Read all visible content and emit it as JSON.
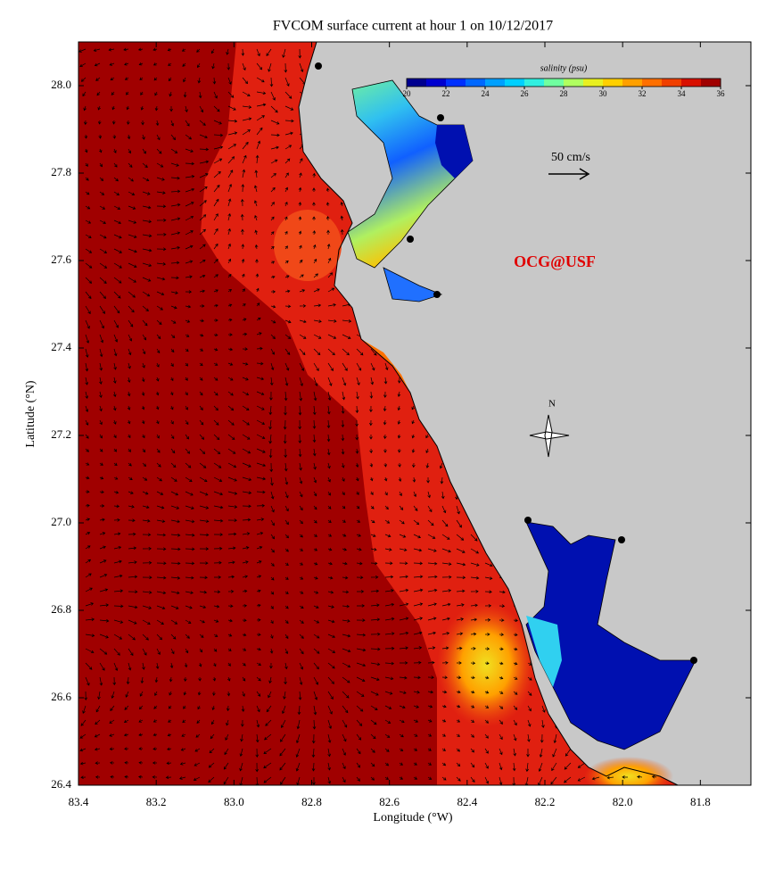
{
  "map": {
    "type": "map",
    "title": "FVCOM surface current at hour 1 on 10/12/2017",
    "x_label": "Longitude (°W)",
    "y_label": "Latitude (°N)",
    "xlim": [
      83.4,
      81.67
    ],
    "ylim": [
      26.4,
      28.1
    ],
    "xticks": [
      83.4,
      83.2,
      {
        "value": 83,
        "label": "83.0"
      },
      82.8,
      82.6,
      82.4,
      82.2,
      {
        "value": 82,
        "label": "82.0"
      },
      81.8
    ],
    "yticks": [
      26.4,
      26.6,
      26.8,
      {
        "value": 27,
        "label": "27.0"
      },
      27.2,
      27.4,
      27.6,
      27.8,
      {
        "value": 28,
        "label": "28.0"
      }
    ],
    "colorbar": {
      "label": "salinity (psu)",
      "lim": [
        20,
        36
      ],
      "ticks": [
        20,
        22,
        24,
        26,
        28,
        30,
        32,
        34,
        36
      ],
      "colors": [
        "#000090",
        "#0000d0",
        "#0030ff",
        "#0068ff",
        "#00a0ff",
        "#00d0ff",
        "#30f0e0",
        "#70ffa0",
        "#b0ff60",
        "#e8f020",
        "#ffd000",
        "#ffa000",
        "#ff7000",
        "#f04000",
        "#d81000",
        "#a00000"
      ]
    },
    "scale_label": "50 cm/s",
    "credit": "OCG@USF",
    "compass_label": "N"
  }
}
